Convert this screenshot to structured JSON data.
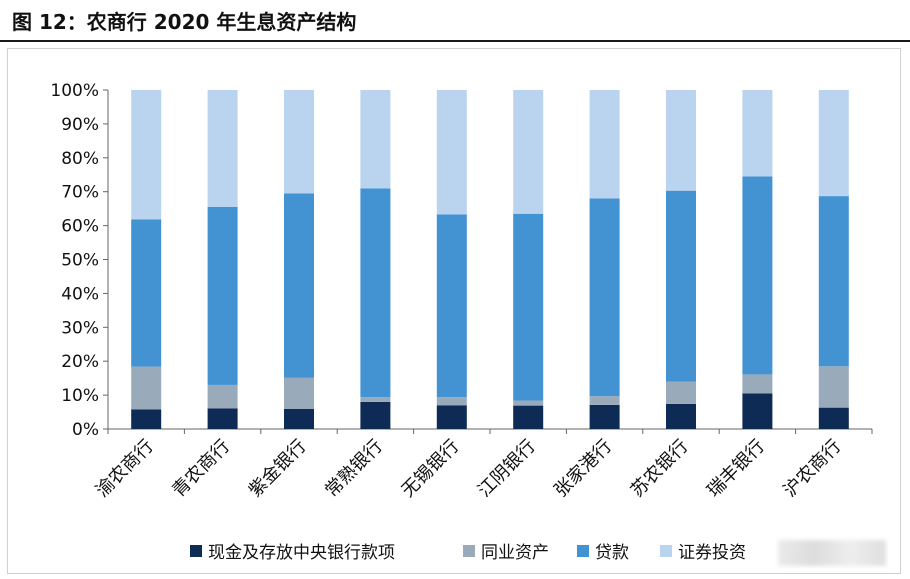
{
  "figure": {
    "title": "图 12：农商行 2020 年生息资产结构"
  },
  "chart_data": {
    "type": "bar",
    "stacked": true,
    "categories": [
      "渝农商行",
      "青农商行",
      "紫金银行",
      "常熟银行",
      "无锡银行",
      "江阴银行",
      "张家港行",
      "苏农银行",
      "瑞丰银行",
      "沪农商行"
    ],
    "series": [
      {
        "name": "现金及存放中央银行款项",
        "color": "#0d2b55",
        "values": [
          5.8,
          6.1,
          5.9,
          8.0,
          7.0,
          6.9,
          7.1,
          7.4,
          10.5,
          6.3
        ]
      },
      {
        "name": "同业资产",
        "color": "#99aabb",
        "values": [
          12.6,
          6.9,
          9.2,
          1.4,
          2.4,
          1.5,
          2.6,
          6.6,
          5.6,
          12.2
        ]
      },
      {
        "name": "贷款",
        "color": "#4393d3",
        "values": [
          43.4,
          52.5,
          54.4,
          61.6,
          53.9,
          55.1,
          58.3,
          56.3,
          58.4,
          50.2
        ]
      },
      {
        "name": "证券投资",
        "color": "#bad3ee",
        "values": [
          38.2,
          34.5,
          30.5,
          29.0,
          36.7,
          36.5,
          32.0,
          29.7,
          25.5,
          31.3
        ]
      }
    ],
    "ylim": [
      0,
      100
    ],
    "y_ticks": [
      "0%",
      "10%",
      "20%",
      "30%",
      "40%",
      "50%",
      "60%",
      "70%",
      "80%",
      "90%",
      "100%"
    ],
    "grid": false,
    "legend_position": "bottom"
  },
  "watermark": {
    "blurred": true
  }
}
